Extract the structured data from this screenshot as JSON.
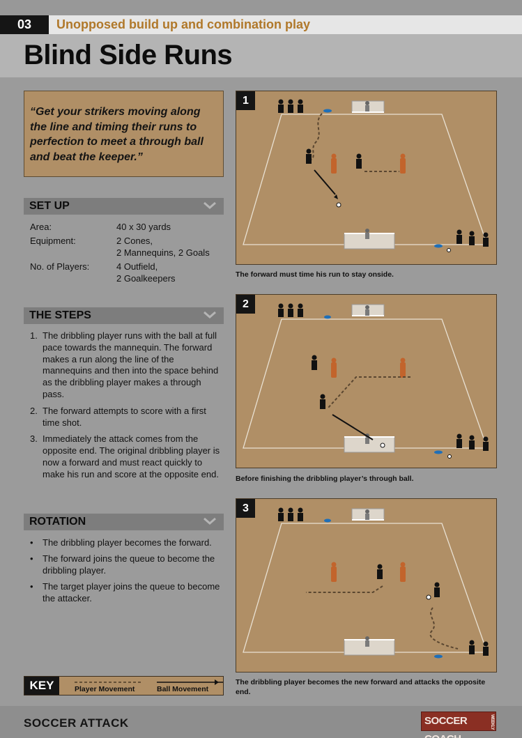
{
  "header": {
    "number": "03",
    "subtitle": "Unopposed build up and combination play",
    "title": "Blind Side Runs"
  },
  "quote": "“Get your strikers moving along the line and timing their runs to perfection to meet a through ball and beat the keeper.”",
  "setup": {
    "heading": "SET UP",
    "rows": [
      {
        "label": "Area:",
        "value": "40 x 30 yards"
      },
      {
        "label": "Equipment:",
        "value": "2 Cones,",
        "value2": "2 Mannequins, 2 Goals"
      },
      {
        "label": "No. of Players:",
        "value": "4 Outfield,",
        "value2": "2 Goalkeepers"
      }
    ]
  },
  "steps": {
    "heading": "THE STEPS",
    "items": [
      {
        "n": "1.",
        "text": "The dribbling player runs with the ball at full pace towards the mannequin. The forward makes a run along the line of the mannequins and then into the space behind as the dribbling player makes a through pass."
      },
      {
        "n": "2.",
        "text": "The forward attempts to score with a first time shot."
      },
      {
        "n": "3.",
        "text": "Immediately the attack comes from the opposite end. The original dribbling player is now a forward and must react quickly to make his run and score at the opposite end."
      }
    ]
  },
  "rotation": {
    "heading": "ROTATION",
    "items": [
      {
        "b": "•",
        "text": "The dribbling player becomes the forward."
      },
      {
        "b": "•",
        "text": "The forward joins the queue to become the dribbling player."
      },
      {
        "b": "•",
        "text": "The target player joins the queue to become the attacker."
      }
    ]
  },
  "key": {
    "label": "KEY",
    "player_movement": "Player Movement",
    "ball_movement": "Ball Movement"
  },
  "diagrams": [
    {
      "number": "1",
      "caption": "The forward must time his run to stay onside."
    },
    {
      "number": "2",
      "caption": "Before finishing the dribbling player’s through ball."
    },
    {
      "number": "3",
      "caption": "The dribbling player becomes the new forward and attacks the opposite end."
    }
  ],
  "footer": {
    "brand": "SOCCER ATTACK",
    "logo": "SOCCER COACH",
    "logo_small": "WEEKLY"
  },
  "colors": {
    "accent": "#b0782a",
    "pitch": "#b08f66",
    "mannequin": "#c2642c",
    "cone": "#1f6fb8"
  }
}
